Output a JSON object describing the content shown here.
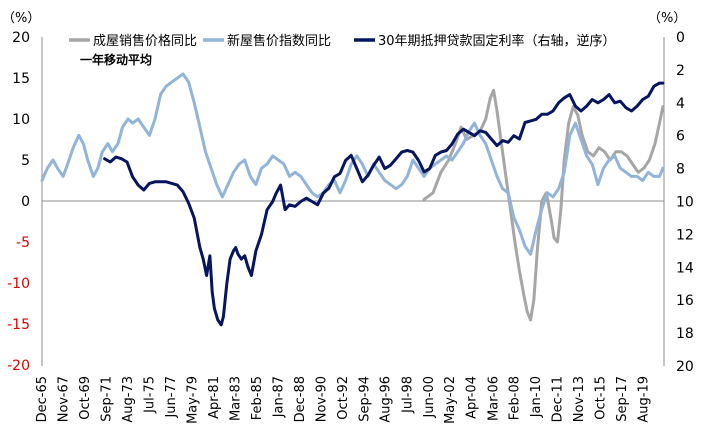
{
  "chart_data": {
    "type": "line",
    "left_axis_unit": "（%）",
    "right_axis_unit": "（%）",
    "left_axis": {
      "min": -20,
      "max": 20,
      "ticks": [
        20,
        15,
        10,
        5,
        0,
        -5,
        -10,
        -15,
        -20
      ],
      "negative_color": "#e00000"
    },
    "right_axis": {
      "min": 0,
      "max": 20,
      "inverted": true,
      "ticks": [
        0,
        2,
        4,
        6,
        8,
        10,
        12,
        14,
        16,
        18,
        20
      ]
    },
    "x_range": [
      1965.92,
      2021.4
    ],
    "x_tick_labels": [
      "Dec-65",
      "Nov-67",
      "Oct-69",
      "Sep-71",
      "Aug-73",
      "Jul-75",
      "Jun-77",
      "May-79",
      "Apr-81",
      "Mar-83",
      "Feb-85",
      "Jan-87",
      "Dec-88",
      "Nov-90",
      "Oct-92",
      "Sep-94",
      "Aug-96",
      "Jul-98",
      "Jun-00",
      "May-02",
      "Apr-04",
      "Mar-06",
      "Feb-08",
      "Jan-10",
      "Dec-11",
      "Nov-13",
      "Oct-15",
      "Sep-17",
      "Aug-19"
    ],
    "x_tick_values": [
      1965.92,
      1967.83,
      1969.75,
      1971.67,
      1973.58,
      1975.5,
      1977.42,
      1979.33,
      1981.25,
      1983.17,
      1985.08,
      1987.0,
      1988.92,
      1990.83,
      1992.75,
      1994.67,
      1996.58,
      1998.5,
      2000.42,
      2002.33,
      2004.25,
      2006.17,
      2008.08,
      2010.0,
      2011.92,
      2013.83,
      2015.75,
      2017.67,
      2019.58
    ],
    "legend": [
      "成屋销售价格同比",
      "新屋售价指数同比",
      "30年期抵押贷款固定利率（右轴，逆序）"
    ],
    "legend_sub": "一年移动平均",
    "series": [
      {
        "name": "成屋销售价格同比",
        "axis": "left",
        "color": "#a6a6a6",
        "x": [
          2000.0,
          2000.8,
          2001.5,
          2002.2,
          2002.8,
          2003.3,
          2003.8,
          2004.4,
          2005.0,
          2005.5,
          2005.9,
          2006.2,
          2006.5,
          2006.9,
          2007.3,
          2007.7,
          2008.1,
          2008.5,
          2008.9,
          2009.2,
          2009.5,
          2009.8,
          2010.1,
          2010.5,
          2010.9,
          2011.3,
          2011.6,
          2011.9,
          2012.2,
          2012.5,
          2012.9,
          2013.3,
          2013.7,
          2014.1,
          2014.6,
          2015.1,
          2015.6,
          2016.1,
          2016.6,
          2017.1,
          2017.6,
          2018.1,
          2018.6,
          2019.1,
          2019.6,
          2020.1,
          2020.6,
          2021.0,
          2021.3
        ],
        "values": [
          0.2,
          1.0,
          3.5,
          5.0,
          7.0,
          9.0,
          7.5,
          8.0,
          8.5,
          10.0,
          12.5,
          13.5,
          11.0,
          7.0,
          3.0,
          -1.0,
          -5.0,
          -8.5,
          -11.5,
          -13.5,
          -14.5,
          -12.0,
          -6.0,
          0.0,
          1.0,
          -2.0,
          -4.5,
          -5.0,
          -1.0,
          5.0,
          9.5,
          11.5,
          10.5,
          8.0,
          6.0,
          5.5,
          6.5,
          6.0,
          5.0,
          6.0,
          6.0,
          5.5,
          4.5,
          3.5,
          4.0,
          5.0,
          7.0,
          9.5,
          11.5
        ]
      },
      {
        "name": "新屋售价指数同比",
        "axis": "left",
        "color": "#92b4d9",
        "x": [
          1965.92,
          1966.4,
          1966.9,
          1967.3,
          1967.8,
          1968.2,
          1968.7,
          1969.2,
          1969.6,
          1970.0,
          1970.5,
          1970.9,
          1971.3,
          1971.8,
          1972.2,
          1972.7,
          1973.1,
          1973.6,
          1974.0,
          1974.5,
          1975.0,
          1975.5,
          1976.0,
          1976.5,
          1977.0,
          1977.5,
          1978.0,
          1978.5,
          1979.0,
          1979.5,
          1980.0,
          1980.5,
          1981.0,
          1981.5,
          1982.0,
          1982.5,
          1983.0,
          1983.5,
          1984.0,
          1984.5,
          1985.0,
          1985.5,
          1986.0,
          1986.5,
          1987.0,
          1987.5,
          1988.0,
          1988.5,
          1989.0,
          1989.5,
          1990.0,
          1990.5,
          1991.0,
          1991.5,
          1992.0,
          1992.5,
          1993.0,
          1993.5,
          1994.0,
          1994.5,
          1995.0,
          1995.5,
          1996.0,
          1996.5,
          1997.0,
          1997.5,
          1998.0,
          1998.5,
          1999.0,
          1999.5,
          2000.0,
          2000.5,
          2001.0,
          2001.5,
          2002.0,
          2002.5,
          2003.0,
          2003.5,
          2004.0,
          2004.5,
          2005.0,
          2005.5,
          2006.0,
          2006.5,
          2007.0,
          2007.5,
          2008.0,
          2008.5,
          2009.0,
          2009.5,
          2010.0,
          2010.5,
          2011.0,
          2011.5,
          2012.0,
          2012.5,
          2013.0,
          2013.5,
          2014.0,
          2014.5,
          2015.0,
          2015.5,
          2016.0,
          2016.5,
          2017.0,
          2017.5,
          2018.0,
          2018.5,
          2019.0,
          2019.5,
          2020.0,
          2020.5,
          2021.0,
          2021.3
        ],
        "values": [
          2.5,
          4.0,
          5.0,
          4.0,
          3.0,
          4.5,
          6.5,
          8.0,
          7.0,
          5.0,
          3.0,
          4.0,
          6.0,
          7.0,
          6.0,
          7.0,
          9.0,
          10.0,
          9.5,
          10.0,
          9.0,
          8.0,
          10.0,
          13.0,
          14.0,
          14.5,
          15.0,
          15.5,
          14.5,
          12.0,
          9.0,
          6.0,
          4.0,
          2.0,
          0.5,
          2.0,
          3.5,
          4.5,
          5.0,
          3.0,
          2.0,
          4.0,
          4.5,
          5.5,
          5.0,
          4.5,
          3.0,
          3.5,
          3.0,
          2.0,
          1.0,
          0.5,
          1.0,
          2.0,
          2.5,
          1.0,
          2.5,
          4.5,
          5.5,
          4.5,
          3.0,
          4.5,
          3.5,
          2.5,
          2.0,
          1.5,
          2.0,
          3.0,
          5.0,
          4.0,
          3.0,
          4.0,
          4.5,
          5.0,
          5.5,
          5.0,
          6.0,
          7.0,
          8.5,
          9.5,
          8.0,
          7.0,
          5.0,
          3.0,
          1.5,
          1.0,
          -2.0,
          -3.5,
          -5.5,
          -6.5,
          -3.5,
          -1.0,
          1.0,
          0.5,
          1.5,
          3.5,
          8.0,
          9.5,
          7.5,
          5.5,
          4.5,
          2.0,
          4.0,
          5.0,
          5.5,
          4.0,
          3.5,
          3.0,
          3.0,
          2.5,
          3.5,
          3.0,
          3.0,
          4.0
        ]
      },
      {
        "name": "30年期抵押贷款固定利率（右轴，逆序）",
        "axis": "right",
        "color": "#06155e",
        "x": [
          1971.5,
          1972.0,
          1972.5,
          1973.0,
          1973.5,
          1974.0,
          1974.5,
          1975.0,
          1975.5,
          1976.0,
          1976.5,
          1977.0,
          1977.5,
          1978.0,
          1978.5,
          1979.0,
          1979.5,
          1980.0,
          1980.3,
          1980.6,
          1980.9,
          1981.1,
          1981.3,
          1981.6,
          1981.9,
          1982.1,
          1982.4,
          1982.7,
          1983.0,
          1983.2,
          1983.4,
          1983.7,
          1984.0,
          1984.3,
          1984.6,
          1985.0,
          1985.5,
          1986.0,
          1986.5,
          1986.8,
          1987.2,
          1987.6,
          1988.0,
          1988.5,
          1989.0,
          1989.5,
          1990.0,
          1990.5,
          1991.0,
          1991.5,
          1992.0,
          1992.5,
          1993.0,
          1993.5,
          1994.0,
          1994.5,
          1995.0,
          1995.5,
          1996.0,
          1996.5,
          1997.0,
          1997.5,
          1998.0,
          1998.5,
          1999.0,
          1999.5,
          2000.0,
          2000.5,
          2001.0,
          2001.5,
          2002.0,
          2002.5,
          2003.0,
          2003.5,
          2004.0,
          2004.5,
          2005.0,
          2005.5,
          2006.0,
          2006.5,
          2007.0,
          2007.5,
          2008.0,
          2008.5,
          2009.0,
          2009.5,
          2010.0,
          2010.5,
          2011.0,
          2011.5,
          2012.0,
          2012.5,
          2013.0,
          2013.5,
          2014.0,
          2014.5,
          2015.0,
          2015.5,
          2016.0,
          2016.5,
          2017.0,
          2017.5,
          2018.0,
          2018.5,
          2019.0,
          2019.5,
          2020.0,
          2020.5,
          2021.0,
          2021.3
        ],
        "values": [
          7.4,
          7.6,
          7.3,
          7.4,
          7.6,
          8.5,
          9.0,
          9.3,
          8.9,
          8.8,
          8.8,
          8.8,
          8.9,
          9.0,
          9.4,
          10.1,
          11.0,
          12.8,
          13.5,
          14.5,
          13.3,
          15.5,
          16.5,
          17.2,
          17.5,
          17.0,
          15.0,
          13.5,
          13.0,
          12.8,
          13.2,
          13.5,
          13.3,
          14.0,
          14.5,
          13.0,
          12.0,
          10.5,
          10.0,
          9.5,
          9.0,
          10.5,
          10.2,
          10.3,
          10.0,
          9.8,
          10.0,
          10.2,
          9.5,
          9.2,
          8.5,
          8.3,
          7.5,
          7.2,
          8.0,
          8.8,
          8.4,
          7.8,
          7.3,
          8.0,
          7.8,
          7.4,
          7.0,
          6.9,
          7.0,
          7.5,
          8.2,
          8.0,
          7.2,
          7.0,
          6.9,
          6.5,
          5.9,
          5.6,
          5.8,
          6.0,
          5.7,
          5.8,
          6.2,
          6.6,
          6.3,
          6.4,
          6.0,
          6.2,
          5.2,
          5.1,
          5.0,
          4.7,
          4.7,
          4.5,
          4.0,
          3.7,
          3.5,
          4.2,
          4.5,
          4.2,
          3.8,
          4.0,
          3.8,
          3.5,
          4.0,
          3.9,
          4.3,
          4.5,
          4.2,
          3.8,
          3.6,
          3.0,
          2.8,
          2.8
        ]
      }
    ]
  }
}
